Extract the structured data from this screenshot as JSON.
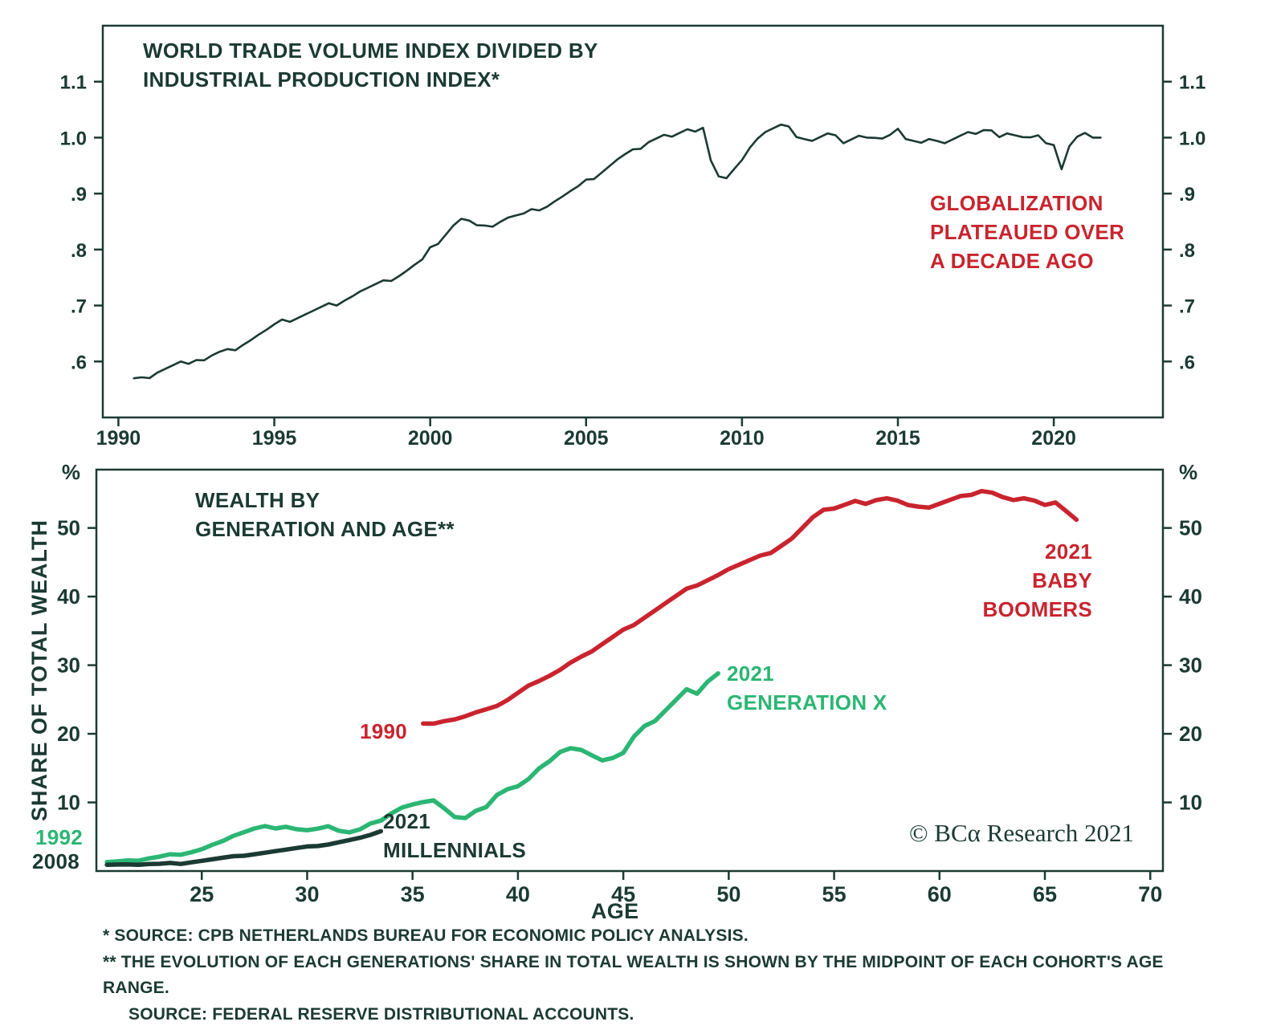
{
  "watermark": "© BCα Research 2021",
  "colors": {
    "ink": "#1b3a33",
    "red": "#c9242e",
    "green": "#2bb673",
    "background": "#ffffff"
  },
  "footnotes": [
    "* SOURCE: CPB NETHERLANDS BUREAU FOR ECONOMIC POLICY ANALYSIS.",
    "** THE EVOLUTION OF EACH GENERATIONS' SHARE IN TOTAL WEALTH IS SHOWN BY THE MIDPOINT OF EACH COHORT'S AGE RANGE.",
    "SOURCE: FEDERAL RESERVE DISTRIBUTIONAL ACCOUNTS."
  ],
  "chart_data": [
    {
      "type": "line",
      "name": "world-trade-ratio",
      "title": "WORLD TRADE VOLUME INDEX DIVIDED BY\nINDUSTRIAL PRODUCTION INDEX*",
      "annotation": "GLOBALIZATION\nPLATEAUED OVER\nA DECADE AGO",
      "xlabel": "",
      "ylabel": "",
      "xlim": [
        1989.5,
        2023.5
      ],
      "ylim": [
        0.5,
        1.2
      ],
      "x_ticks": [
        1990,
        1995,
        2000,
        2005,
        2010,
        2015,
        2020
      ],
      "y_ticks": [
        0.6,
        0.7,
        0.8,
        0.9,
        1.0,
        1.1
      ],
      "y_tick_labels": [
        ".6",
        ".7",
        ".8",
        ".9",
        "1.0",
        "1.1"
      ],
      "grid": false,
      "legend": "none",
      "series": [
        {
          "name": "trade-ip-ratio",
          "color": "#1b3a33",
          "x0": 1990.5,
          "dx": 0.25,
          "jitter": 0.005,
          "values": [
            0.57,
            0.575,
            0.572,
            0.58,
            0.585,
            0.59,
            0.595,
            0.6,
            0.605,
            0.603,
            0.61,
            0.615,
            0.618,
            0.625,
            0.633,
            0.64,
            0.648,
            0.655,
            0.663,
            0.67,
            0.675,
            0.68,
            0.685,
            0.69,
            0.695,
            0.7,
            0.705,
            0.712,
            0.718,
            0.725,
            0.73,
            0.735,
            0.74,
            0.748,
            0.755,
            0.763,
            0.772,
            0.78,
            0.8,
            0.815,
            0.83,
            0.845,
            0.855,
            0.85,
            0.84,
            0.838,
            0.845,
            0.852,
            0.858,
            0.86,
            0.862,
            0.868,
            0.875,
            0.88,
            0.888,
            0.895,
            0.903,
            0.91,
            0.92,
            0.93,
            0.94,
            0.95,
            0.96,
            0.968,
            0.975,
            0.985,
            0.995,
            1.0,
            1.005,
            1.0,
            1.005,
            1.01,
            1.015,
            1.02,
            0.96,
            0.93,
            0.925,
            0.94,
            0.965,
            0.985,
            1.0,
            1.01,
            1.015,
            1.02,
            1.015,
            1.005,
            1.0,
            0.995,
            1.0,
            1.005,
            1.0,
            0.995,
            1.0,
            1.005,
            1.0,
            0.998,
            0.995,
            1.0,
            1.02,
            1.0,
            0.995,
            0.99,
            0.995,
            0.99,
            0.995,
            1.0,
            1.005,
            1.01,
            1.005,
            1.01,
            1.008,
            1.005,
            1.01,
            1.005,
            1.0,
            0.998,
            1.0,
            0.995,
            0.99,
            0.945,
            0.985,
            1.0,
            1.005,
            0.995,
            1.0
          ]
        }
      ]
    },
    {
      "type": "line",
      "name": "wealth-by-generation",
      "title": "WEALTH BY\nGENERATION AND AGE**",
      "xlabel": "AGE",
      "ylabel": "SHARE OF TOTAL WEALTH",
      "y_unit": "%",
      "xlim": [
        20,
        70.6
      ],
      "ylim": [
        0,
        58.5
      ],
      "x_ticks": [
        25,
        30,
        35,
        40,
        45,
        50,
        55,
        60,
        65,
        70
      ],
      "y_ticks": [
        10,
        20,
        30,
        40,
        50
      ],
      "grid": false,
      "legend": "inline-annotations",
      "series": [
        {
          "name": "baby-boomers",
          "color": "#c9242e",
          "start_label": "1990",
          "end_label": "2021\nBABY BOOMERS",
          "x0": 35.5,
          "dx": 0.5,
          "jitter": 0.18,
          "values": [
            21.5,
            21.6,
            21.9,
            22.1,
            22.5,
            23.0,
            23.4,
            24.2,
            25.0,
            26.0,
            27.0,
            27.6,
            28.3,
            29.5,
            30.5,
            31.3,
            32.0,
            33.0,
            34.0,
            35.0,
            36.0,
            37.0,
            38.0,
            39.0,
            40.0,
            41.0,
            41.8,
            42.5,
            43.2,
            44.0,
            44.6,
            45.2,
            45.8,
            46.5,
            47.5,
            48.5,
            50.0,
            51.5,
            52.5,
            53.0,
            53.5,
            54.0,
            53.5,
            54.0,
            54.2,
            53.8,
            53.5,
            53.2,
            53.0,
            53.5,
            54.0,
            54.5,
            55.0,
            55.5,
            55.2,
            54.5,
            54.0,
            54.2,
            53.8,
            53.5,
            53.8,
            52.5,
            51.2
          ]
        },
        {
          "name": "generation-x",
          "color": "#2bb673",
          "start_label": "1992",
          "end_label": "2021\nGENERATION X",
          "x0": 20.5,
          "dx": 0.5,
          "jitter": 0.15,
          "values": [
            1.3,
            1.5,
            1.6,
            1.5,
            1.8,
            2.0,
            2.3,
            2.5,
            2.8,
            3.2,
            3.8,
            4.3,
            5.0,
            5.8,
            6.3,
            6.6,
            6.2,
            6.4,
            6.0,
            5.8,
            6.3,
            6.6,
            5.9,
            5.6,
            6.0,
            6.8,
            7.5,
            8.5,
            9.3,
            9.7,
            10.0,
            10.2,
            9.0,
            8.0,
            7.8,
            8.8,
            9.3,
            11.0,
            11.8,
            12.5,
            13.5,
            15.0,
            16.0,
            17.3,
            17.8,
            17.5,
            17.0,
            16.2,
            16.5,
            17.2,
            19.5,
            21.0,
            22.0,
            23.5,
            25.0,
            26.5,
            25.8,
            27.5,
            28.8
          ]
        },
        {
          "name": "millennials",
          "color": "#1b3a33",
          "start_label": "2008",
          "end_label": "2021\nMILLENNIALS",
          "x0": 20.5,
          "dx": 0.5,
          "jitter": 0.08,
          "values": [
            0.9,
            1.0,
            1.0,
            0.9,
            1.0,
            1.0,
            1.1,
            1.1,
            1.3,
            1.5,
            1.7,
            1.9,
            2.1,
            2.3,
            2.5,
            2.7,
            2.9,
            3.1,
            3.3,
            3.5,
            3.7,
            3.9,
            4.2,
            4.5,
            4.8,
            5.2,
            5.8
          ]
        }
      ]
    }
  ]
}
